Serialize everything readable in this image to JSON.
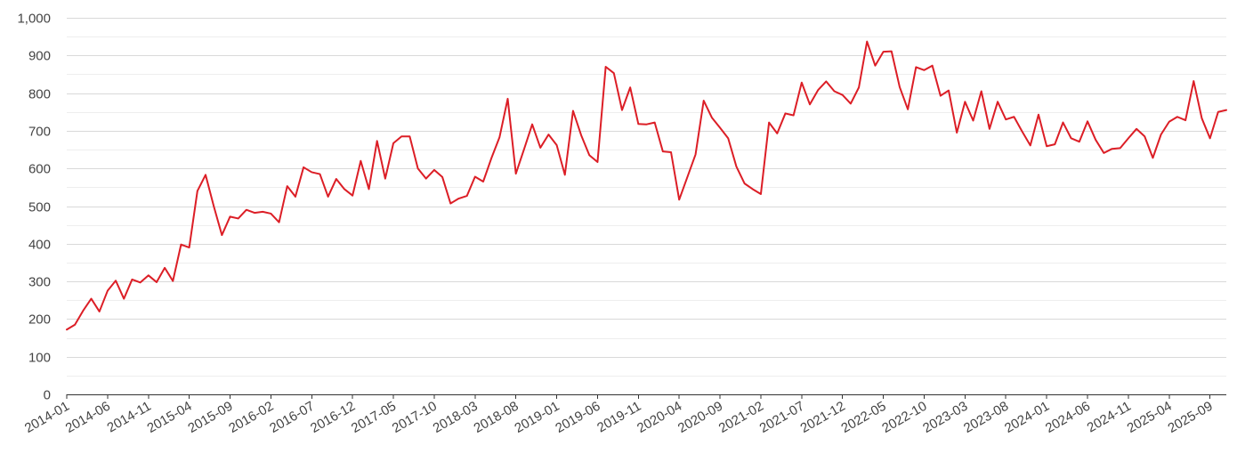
{
  "chart_data": {
    "type": "line",
    "title": "",
    "xlabel": "",
    "ylabel": "",
    "ylim": [
      0,
      1000
    ],
    "y_ticks": [
      0,
      100,
      200,
      300,
      400,
      500,
      600,
      700,
      800,
      900,
      1000
    ],
    "y_tick_labels": [
      "0",
      "100",
      "200",
      "300",
      "400",
      "500",
      "600",
      "700",
      "800",
      "900",
      "1,000"
    ],
    "x_tick_labels": [
      "2014-01",
      "2014-06",
      "2014-11",
      "2015-04",
      "2015-09",
      "2016-02",
      "2016-07",
      "2016-12",
      "2017-05",
      "2017-10",
      "2018-03",
      "2018-08",
      "2019-01",
      "2019-06",
      "2019-11",
      "2020-04",
      "2020-09",
      "2021-02",
      "2021-07",
      "2021-12",
      "2022-05",
      "2022-10",
      "2023-03",
      "2023-08",
      "2024-01",
      "2024-06",
      "2024-11",
      "2025-04",
      "2025-09"
    ],
    "grid": true,
    "minor_grid": true,
    "legend": "none",
    "colors": {
      "line": "#dc1e26",
      "grid": "#d9d9d9",
      "axis": "#333333"
    },
    "x": [
      "2014-01",
      "2014-02",
      "2014-03",
      "2014-04",
      "2014-05",
      "2014-06",
      "2014-07",
      "2014-08",
      "2014-09",
      "2014-10",
      "2014-11",
      "2014-12",
      "2015-01",
      "2015-02",
      "2015-03",
      "2015-04",
      "2015-05",
      "2015-06",
      "2015-07",
      "2015-08",
      "2015-09",
      "2015-10",
      "2015-11",
      "2015-12",
      "2016-01",
      "2016-02",
      "2016-03",
      "2016-04",
      "2016-05",
      "2016-06",
      "2016-07",
      "2016-08",
      "2016-09",
      "2016-10",
      "2016-11",
      "2016-12",
      "2017-01",
      "2017-02",
      "2017-03",
      "2017-04",
      "2017-05",
      "2017-06",
      "2017-07",
      "2017-08",
      "2017-09",
      "2017-10",
      "2017-11",
      "2017-12",
      "2018-01",
      "2018-02",
      "2018-03",
      "2018-04",
      "2018-05",
      "2018-06",
      "2018-07",
      "2018-08",
      "2018-09",
      "2018-10",
      "2018-11",
      "2018-12",
      "2019-01",
      "2019-02",
      "2019-03",
      "2019-04",
      "2019-05",
      "2019-06",
      "2019-07",
      "2019-08",
      "2019-09",
      "2019-10",
      "2019-11",
      "2019-12",
      "2020-01",
      "2020-02",
      "2020-03",
      "2020-04",
      "2020-05",
      "2020-06",
      "2020-07",
      "2020-08",
      "2020-09",
      "2020-10",
      "2020-11",
      "2020-12",
      "2021-01",
      "2021-02",
      "2021-03",
      "2021-04",
      "2021-05",
      "2021-06",
      "2021-07",
      "2021-08",
      "2021-09",
      "2021-10",
      "2021-11",
      "2021-12",
      "2022-01",
      "2022-02",
      "2022-03",
      "2022-04",
      "2022-05",
      "2022-06",
      "2022-07",
      "2022-08",
      "2022-09",
      "2022-10",
      "2022-11",
      "2022-12",
      "2023-01",
      "2023-02",
      "2023-03",
      "2023-04",
      "2023-05",
      "2023-06",
      "2023-07",
      "2023-08",
      "2023-09",
      "2023-10",
      "2023-11",
      "2023-12",
      "2024-01",
      "2024-02",
      "2024-03",
      "2024-04",
      "2024-05",
      "2024-06",
      "2024-07",
      "2024-08",
      "2024-09",
      "2024-10",
      "2024-11",
      "2024-12",
      "2025-01",
      "2025-02",
      "2025-03",
      "2025-04",
      "2025-05",
      "2025-06",
      "2025-07",
      "2025-08",
      "2025-09",
      "2025-10",
      "2025-11"
    ],
    "series": [
      {
        "values": [
          172,
          185,
          222,
          254,
          220,
          275,
          302,
          254,
          305,
          297,
          316,
          298,
          336,
          301,
          398,
          390,
          540,
          583,
          500,
          423,
          472,
          467,
          490,
          482,
          485,
          480,
          457,
          553,
          525,
          603,
          590,
          585,
          525,
          572,
          545,
          528,
          620,
          545,
          673,
          573,
          667,
          685,
          685,
          600,
          573,
          596,
          577,
          507,
          520,
          527,
          578,
          565,
          627,
          683,
          785,
          586,
          651,
          717,
          655,
          690,
          662,
          583,
          753,
          688,
          635,
          617,
          870,
          853,
          755,
          815,
          718,
          717,
          722,
          645,
          643,
          517,
          577,
          637,
          780,
          735,
          708,
          680,
          605,
          560,
          545,
          532,
          722,
          693,
          746,
          741,
          828,
          770,
          808,
          831,
          805,
          795,
          772,
          815,
          937,
          873,
          910,
          911,
          816,
          757,
          869,
          861,
          873,
          793,
          807,
          695,
          777,
          727,
          805,
          705,
          777,
          730,
          737,
          698,
          661,
          743,
          659,
          664,
          722,
          680,
          671,
          725,
          676,
          641,
          652,
          654,
          680,
          705,
          685,
          628,
          690,
          724,
          737,
          728,
          832,
          733,
          680,
          750,
          755
        ]
      }
    ]
  }
}
